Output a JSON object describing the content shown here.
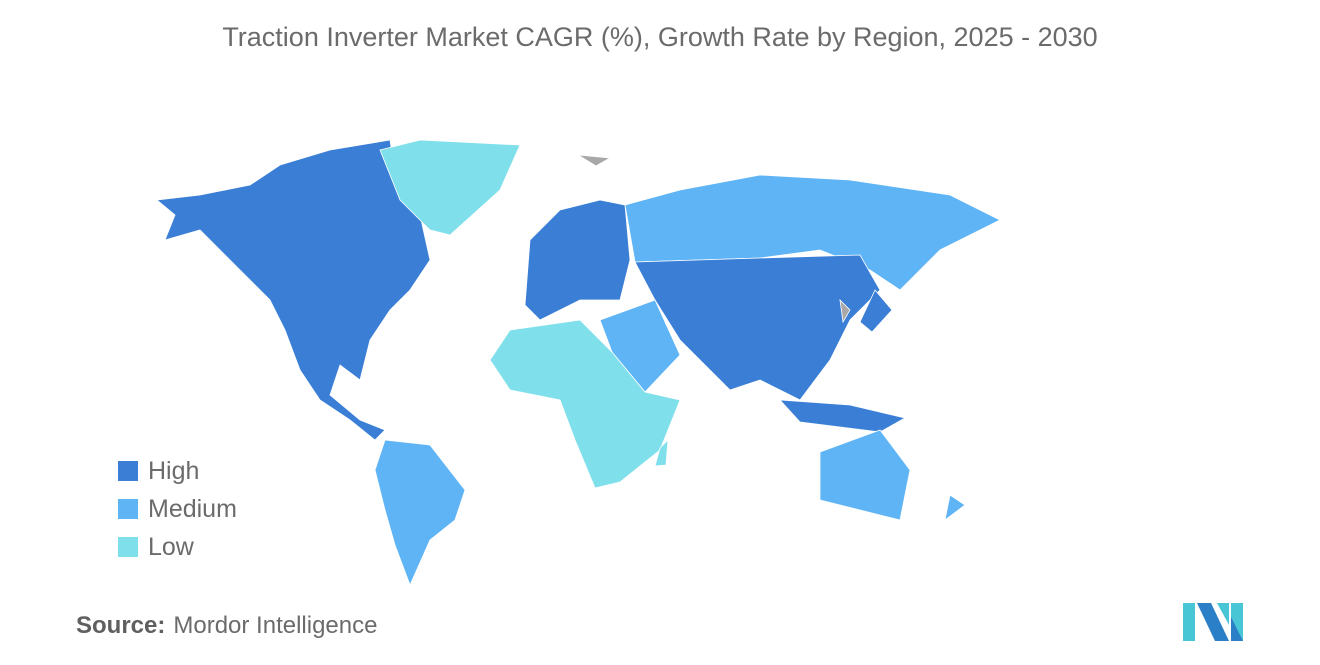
{
  "title": "Traction Inverter Market CAGR (%), Growth Rate by Region, 2025 - 2030",
  "legend": [
    {
      "label": "High",
      "color": "#3a7fd5"
    },
    {
      "label": "Medium",
      "color": "#5fb4f5"
    },
    {
      "label": "Low",
      "color": "#7fe0ec"
    }
  ],
  "no_data_color": "#a8a8a8",
  "regions": [
    {
      "name": "North America",
      "category": "High"
    },
    {
      "name": "Europe",
      "category": "High"
    },
    {
      "name": "Asia",
      "category": "High"
    },
    {
      "name": "Japan",
      "category": "High"
    },
    {
      "name": "Southeast Asia",
      "category": "High"
    },
    {
      "name": "Russia",
      "category": "Medium"
    },
    {
      "name": "South America",
      "category": "Medium"
    },
    {
      "name": "Middle East",
      "category": "Medium"
    },
    {
      "name": "Australia",
      "category": "Medium"
    },
    {
      "name": "New Zealand",
      "category": "Medium"
    },
    {
      "name": "Greenland",
      "category": "Low"
    },
    {
      "name": "Africa",
      "category": "Low"
    },
    {
      "name": "Madagascar",
      "category": "Low"
    }
  ],
  "source": {
    "label": "Source:",
    "value": "Mordor Intelligence"
  }
}
